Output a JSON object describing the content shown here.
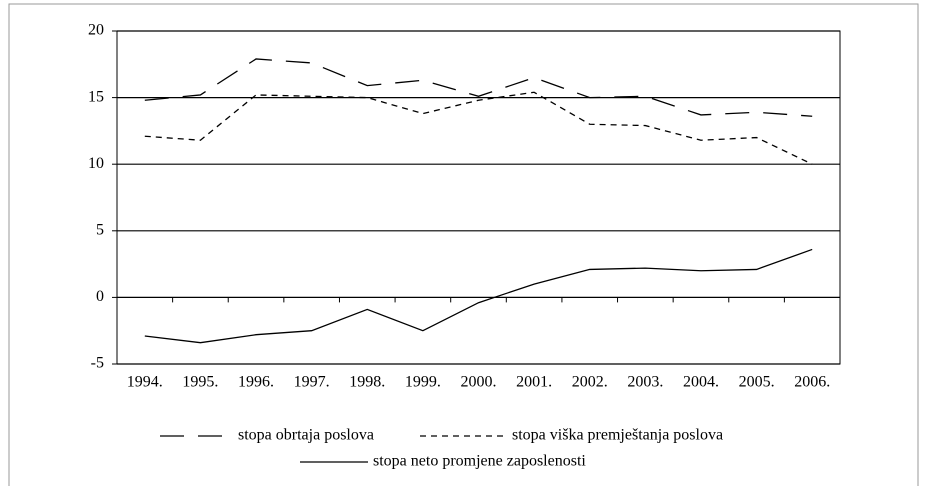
{
  "chart_data": {
    "type": "line",
    "categories": [
      "1994.",
      "1995.",
      "1996.",
      "1997.",
      "1998.",
      "1999.",
      "2000.",
      "2001.",
      "2002.",
      "2003.",
      "2004.",
      "2005.",
      "2006."
    ],
    "series": [
      {
        "name": "stopa obrtaja poslova",
        "color": "#000000",
        "dash": "long",
        "values": [
          14.8,
          15.2,
          17.9,
          17.6,
          15.9,
          16.3,
          15.1,
          16.5,
          15.0,
          15.1,
          13.7,
          13.9,
          13.6
        ]
      },
      {
        "name": "stopa viška premještanja poslova",
        "color": "#000000",
        "dash": "short",
        "values": [
          12.1,
          11.8,
          15.2,
          15.1,
          15.0,
          13.8,
          14.8,
          15.4,
          13.0,
          12.9,
          11.8,
          12.0,
          10.0
        ]
      },
      {
        "name": "stopa neto promjene zaposlenosti",
        "color": "#000000",
        "dash": "solid",
        "values": [
          -2.9,
          -3.4,
          -2.8,
          -2.5,
          -0.9,
          -2.5,
          -0.4,
          1.0,
          2.1,
          2.2,
          2.0,
          2.1,
          3.6
        ]
      }
    ],
    "ylim": [
      -5,
      20
    ],
    "yticks": [
      -5,
      0,
      5,
      10,
      15,
      20
    ],
    "grid": true,
    "legend": "bottom"
  }
}
